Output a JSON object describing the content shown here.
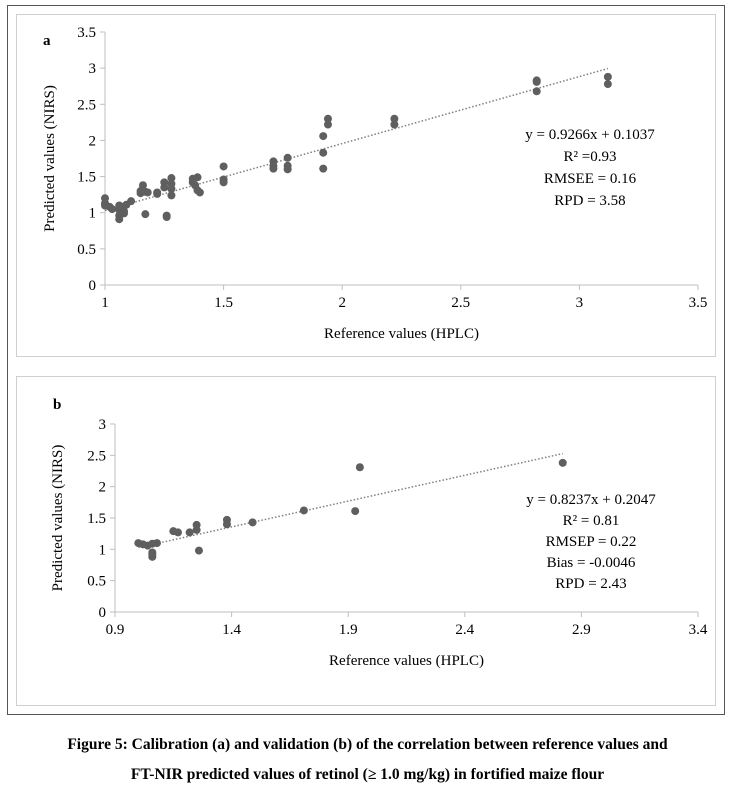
{
  "figure": {
    "caption_line1": "Figure 5: Calibration (a) and validation (b) of the correlation between reference values and",
    "caption_line2": "FT-NIR predicted values of retinol (≥ 1.0 mg/kg) in fortified maize flour"
  },
  "colors": {
    "points": "#5f5f5f",
    "trendline": "#7f7f7f",
    "axis": "#bfbfbf"
  },
  "chart_data": [
    {
      "type": "scatter",
      "panel_label": "a",
      "xlabel": "Reference values (HPLC)",
      "ylabel": "Predicted values (NIRS)",
      "xlim": [
        1,
        3.5
      ],
      "ylim": [
        0,
        3.5
      ],
      "xticks": [
        1,
        1.5,
        2,
        2.5,
        3,
        3.5
      ],
      "xtick_labels": [
        "1",
        "1.5",
        "2",
        "2.5",
        "3",
        "3.5"
      ],
      "yticks": [
        0,
        0.5,
        1,
        1.5,
        2,
        2.5,
        3,
        3.5
      ],
      "ytick_labels": [
        "0",
        "0.5",
        "1",
        "1.5",
        "2",
        "2.5",
        "3",
        "3.5"
      ],
      "grid": false,
      "trendline": {
        "slope": 0.9266,
        "intercept": 0.1037,
        "x_range": [
          1,
          3.12
        ],
        "style": "dotted"
      },
      "annotations": [
        "y = 0.9266x + 0.1037",
        "R² =0.93",
        "RMSEE = 0.16",
        "RPD = 3.58"
      ],
      "points": [
        [
          1.0,
          1.2
        ],
        [
          1.0,
          1.13
        ],
        [
          1.0,
          1.1
        ],
        [
          1.02,
          1.08
        ],
        [
          1.03,
          1.05
        ],
        [
          1.06,
          1.1
        ],
        [
          1.06,
          1.04
        ],
        [
          1.06,
          0.96
        ],
        [
          1.06,
          0.91
        ],
        [
          1.07,
          1.08
        ],
        [
          1.08,
          1.02
        ],
        [
          1.08,
          0.99
        ],
        [
          1.09,
          1.11
        ],
        [
          1.11,
          1.16
        ],
        [
          1.15,
          1.3
        ],
        [
          1.15,
          1.27
        ],
        [
          1.16,
          1.38
        ],
        [
          1.17,
          1.29
        ],
        [
          1.17,
          0.98
        ],
        [
          1.18,
          1.28
        ],
        [
          1.22,
          1.28
        ],
        [
          1.22,
          1.26
        ],
        [
          1.25,
          1.42
        ],
        [
          1.25,
          1.35
        ],
        [
          1.26,
          0.96
        ],
        [
          1.26,
          0.94
        ],
        [
          1.28,
          1.48
        ],
        [
          1.28,
          1.4
        ],
        [
          1.28,
          1.33
        ],
        [
          1.28,
          1.24
        ],
        [
          1.37,
          1.47
        ],
        [
          1.37,
          1.42
        ],
        [
          1.38,
          1.38
        ],
        [
          1.39,
          1.49
        ],
        [
          1.39,
          1.31
        ],
        [
          1.4,
          1.28
        ],
        [
          1.5,
          1.64
        ],
        [
          1.5,
          1.46
        ],
        [
          1.5,
          1.42
        ],
        [
          1.71,
          1.71
        ],
        [
          1.71,
          1.65
        ],
        [
          1.71,
          1.61
        ],
        [
          1.77,
          1.76
        ],
        [
          1.77,
          1.65
        ],
        [
          1.77,
          1.6
        ],
        [
          1.92,
          2.06
        ],
        [
          1.92,
          1.83
        ],
        [
          1.92,
          1.61
        ],
        [
          1.94,
          2.3
        ],
        [
          1.94,
          2.22
        ],
        [
          2.22,
          2.3
        ],
        [
          2.22,
          2.22
        ],
        [
          2.82,
          2.83
        ],
        [
          2.82,
          2.81
        ],
        [
          2.82,
          2.68
        ],
        [
          3.12,
          2.88
        ],
        [
          3.12,
          2.78
        ]
      ]
    },
    {
      "type": "scatter",
      "panel_label": "b",
      "xlabel": "Reference values (HPLC)",
      "ylabel": "Predicted values (NIRS)",
      "xlim": [
        0.9,
        3.4
      ],
      "ylim": [
        0,
        3
      ],
      "xticks": [
        0.9,
        1.4,
        1.9,
        2.4,
        2.9,
        3.4
      ],
      "xtick_labels": [
        "0.9",
        "1.4",
        "1.9",
        "2.4",
        "2.9",
        "3.4"
      ],
      "yticks": [
        0,
        0.5,
        1,
        1.5,
        2,
        2.5,
        3
      ],
      "ytick_labels": [
        "0",
        "0.5",
        "1",
        "1.5",
        "2",
        "2.5",
        "3"
      ],
      "grid": false,
      "trendline": {
        "slope": 0.8237,
        "intercept": 0.2047,
        "x_range": [
          1.0,
          2.82
        ],
        "style": "dotted"
      },
      "annotations": [
        "y = 0.8237x + 0.2047",
        "R² = 0.81",
        "RMSEP = 0.22",
        "Bias = -0.0046",
        "RPD = 2.43"
      ],
      "points": [
        [
          1.0,
          1.1
        ],
        [
          1.02,
          1.08
        ],
        [
          1.04,
          1.06
        ],
        [
          1.06,
          1.09
        ],
        [
          1.06,
          0.95
        ],
        [
          1.06,
          0.92
        ],
        [
          1.06,
          0.88
        ],
        [
          1.08,
          1.1
        ],
        [
          1.15,
          1.29
        ],
        [
          1.17,
          1.27
        ],
        [
          1.22,
          1.27
        ],
        [
          1.25,
          1.39
        ],
        [
          1.25,
          1.31
        ],
        [
          1.26,
          0.98
        ],
        [
          1.38,
          1.47
        ],
        [
          1.38,
          1.4
        ],
        [
          1.49,
          1.43
        ],
        [
          1.71,
          1.62
        ],
        [
          1.93,
          1.61
        ],
        [
          1.95,
          2.31
        ],
        [
          2.82,
          2.38
        ]
      ]
    }
  ]
}
